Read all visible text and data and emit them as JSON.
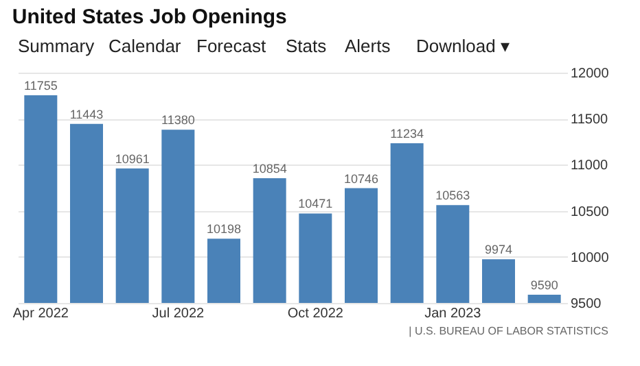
{
  "chart_data": {
    "type": "bar",
    "title": "United States Job Openings",
    "categories": [
      "Apr 2022",
      null,
      null,
      "Jul 2022",
      null,
      null,
      "Oct 2022",
      null,
      null,
      "Jan 2023",
      null,
      null
    ],
    "values": [
      11755,
      11443,
      10961,
      11380,
      10198,
      10854,
      10471,
      10746,
      11234,
      10563,
      9974,
      9590
    ],
    "color": "#4a82b8",
    "ylim": [
      9500,
      12000
    ],
    "yticks": [
      9500,
      10000,
      10500,
      11000,
      11500,
      12000
    ],
    "grid": "y",
    "data_labels": true,
    "annotations": [
      "Summary",
      "Calendar",
      "Forecast",
      "Stats",
      "Alerts",
      "Download ▾",
      "| U.S. BUREAU OF LABOR STATISTICS"
    ]
  }
}
